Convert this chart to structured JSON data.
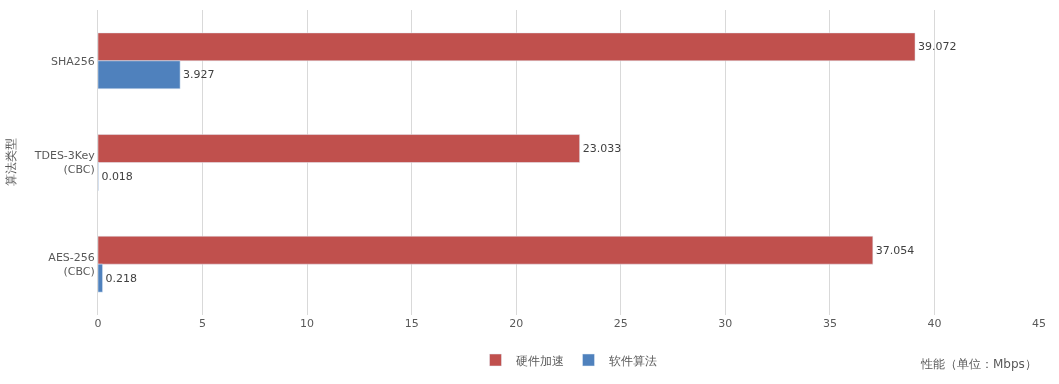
{
  "chart_data": {
    "type": "bar",
    "orientation": "horizontal",
    "categories": [
      "SHA256",
      "TDES-3Key (CBC)",
      "AES-256 (CBC)"
    ],
    "series": [
      {
        "name": "硬件加速",
        "color": "#c0504d",
        "values": [
          39.072,
          23.033,
          37.054
        ]
      },
      {
        "name": "软件算法",
        "color": "#4f81bd",
        "values": [
          3.927,
          0.018,
          0.218
        ]
      }
    ],
    "data_labels": true,
    "xlim": [
      0,
      45
    ],
    "xticks": [
      0,
      5,
      10,
      15,
      20,
      25,
      30,
      35,
      40,
      45
    ],
    "grid": "x",
    "legend": "bottom",
    "xlabel": "性能（单位：Mbps）",
    "ylabel": "算法类型"
  }
}
